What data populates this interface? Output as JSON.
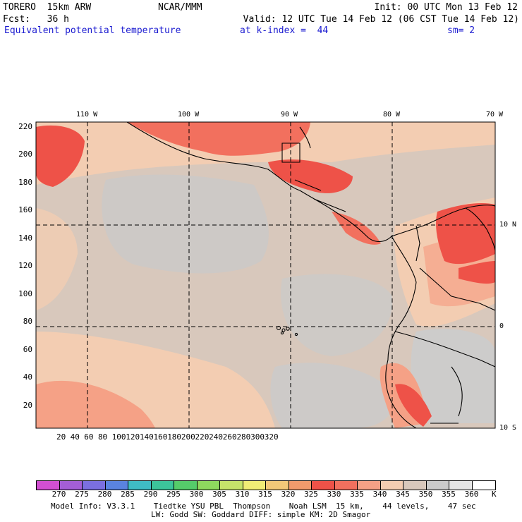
{
  "header": {
    "model": "TORERO  15km ARW",
    "center": "NCAR/MMM",
    "init": "Init: 00 UTC Mon 13 Feb 12",
    "fcst": "Fcst:   36 h",
    "valid": "Valid: 12 UTC Tue 14 Feb 12 (06 CST Tue 14 Feb 12)",
    "field": "Equivalent potential temperature",
    "level": "at k-index =  44",
    "smooth": "sm= 2"
  },
  "map": {
    "lon_labels": [
      "110 W",
      "100 W",
      "90 W",
      "80 W",
      "70 W"
    ],
    "lat_labels": [
      "10 N",
      "0",
      "10 S"
    ],
    "y_ticks": [
      "220",
      "200",
      "180",
      "160",
      "140",
      "120",
      "100",
      "80",
      "60",
      "40",
      "20"
    ],
    "x_ticks": [
      "20",
      "40",
      "60",
      "80",
      "100",
      "120",
      "140",
      "160",
      "180",
      "200",
      "220",
      "240",
      "260",
      "280",
      "300",
      "320"
    ]
  },
  "colorbar": {
    "labels": [
      "270",
      "275",
      "280",
      "285",
      "290",
      "295",
      "300",
      "305",
      "310",
      "315",
      "320",
      "325",
      "330",
      "335",
      "340",
      "345",
      "350",
      "355",
      "360"
    ],
    "unit": "K",
    "colors": [
      "#d24fd2",
      "#a45ed6",
      "#7b6fe0",
      "#5a83e0",
      "#3fbcc4",
      "#3cc49a",
      "#55cc6a",
      "#8ed95e",
      "#c6e36a",
      "#f0ec76",
      "#f2c878",
      "#f29a6c",
      "#ee5248",
      "#f2705e",
      "#f5a186",
      "#f3cdb2",
      "#d8c8bc",
      "#cacaca",
      "#e6e6e6",
      "#ffffff"
    ]
  },
  "footer": {
    "line1": "Model Info: V3.3.1    Tiedtke YSU PBL  Thompson    Noah LSM  15 km,    44 levels,    47 sec",
    "line2": "LW: Godd SW: Goddard DIFF: simple KM: 2D Smagor"
  }
}
